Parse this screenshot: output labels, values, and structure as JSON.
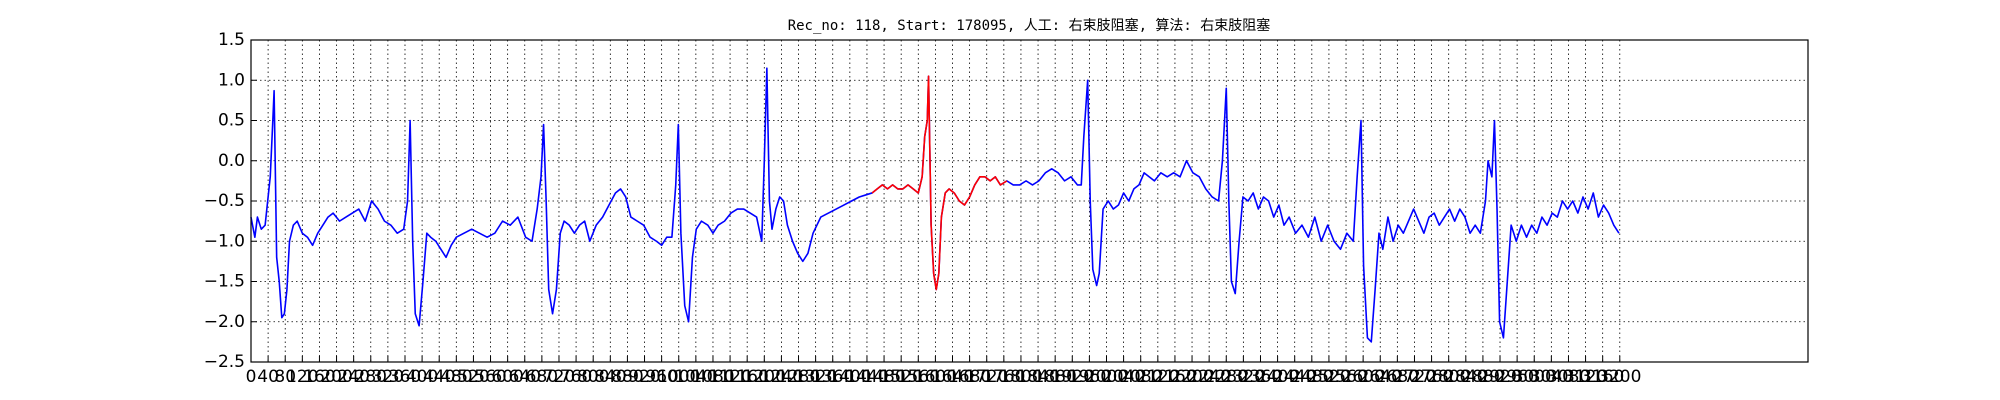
{
  "chart_data": {
    "type": "line",
    "title": "Rec_no: 118, Start: 178095, 人工: 右束肢阻塞, 算法: 右束肢阻塞",
    "xlim": [
      0,
      3640
    ],
    "ylim": [
      -2.5,
      1.5
    ],
    "xticks": [
      0,
      40,
      80,
      120,
      160,
      200,
      240,
      280,
      320,
      360,
      400,
      440,
      480,
      520,
      560,
      600,
      640,
      680,
      720,
      760,
      800,
      840,
      880,
      920,
      960,
      1000,
      1040,
      1080,
      1120,
      1160,
      1200,
      1240,
      1280,
      1320,
      1360,
      1400,
      1440,
      1480,
      1520,
      1560,
      1600,
      1640,
      1680,
      1720,
      1760,
      1800,
      1840,
      1880,
      1920,
      1960,
      2000,
      2040,
      2080,
      2120,
      2160,
      2200,
      2240,
      2280,
      2320,
      2360,
      2400,
      2440,
      2480,
      2520,
      2560,
      2600,
      2640,
      2680,
      2720,
      2760,
      2800,
      2840,
      2880,
      2920,
      2960,
      3000,
      3040,
      3080,
      3120,
      3160,
      3200
    ],
    "yticks": [
      {
        "value": -2.5,
        "label": "−2.5"
      },
      {
        "value": -2.0,
        "label": "−2.0"
      },
      {
        "value": -1.5,
        "label": "−1.5"
      },
      {
        "value": -1.0,
        "label": "−1.0"
      },
      {
        "value": -0.5,
        "label": "−0.5"
      },
      {
        "value": 0.0,
        "label": "0.0"
      },
      0.5,
      {
        "value": 1.0,
        "label": "1.0"
      },
      1.5
    ],
    "grid": true,
    "series": [
      {
        "color": "#0000ff",
        "x": [
          0,
          9,
          15,
          24,
          33,
          39,
          45,
          51,
          54,
          60,
          66,
          72,
          78,
          84,
          90,
          99,
          108,
          120,
          132,
          144,
          156,
          168,
          180,
          192,
          207,
          222,
          237,
          252,
          267,
          282,
          297,
          312,
          327,
          342,
          357,
          366,
          372,
          378,
          384,
          393,
          402,
          411,
          420,
          432,
          444,
          456,
          468,
          480,
          498,
          516,
          534,
          552,
          570,
          588,
          606,
          624,
          642,
          657,
          669,
          678,
          684,
          690,
          696,
          705,
          714,
          723,
          732,
          744,
          756,
          768,
          780,
          792,
          807,
          822,
          837,
          852,
          864,
          876,
          888,
          903,
          918,
          933,
          948,
          960,
          972,
          984,
          993,
          999,
          1005,
          1014,
          1023,
          1032,
          1041,
          1053,
          1068,
          1080,
          1092,
          1107,
          1122,
          1137,
          1152,
          1167,
          1182,
          1194,
          1200,
          1206,
          1212,
          1218,
          1227,
          1236,
          1245,
          1254,
          1266,
          1278,
          1290,
          1302,
          1314,
          1332,
          1350,
          1368,
          1386,
          1404,
          1422,
          1440,
          1452,
          1464,
          1476,
          1488,
          1500,
          1512,
          1524,
          1536,
          1548,
          1560,
          1569,
          1575,
          1581,
          1584,
          1590,
          1596,
          1602,
          1608,
          1614,
          1623,
          1632,
          1644,
          1656,
          1668,
          1680,
          1692,
          1704,
          1716,
          1728,
          1740,
          1752,
          1767,
          1782,
          1797,
          1812,
          1827,
          1842,
          1857,
          1872,
          1887,
          1902,
          1917,
          1932,
          1941,
          1947,
          1956,
          1962,
          1968,
          1977,
          1983,
          1992,
          2004,
          2016,
          2028,
          2040,
          2052,
          2064,
          2076,
          2088,
          2100,
          2112,
          2127,
          2142,
          2157,
          2172,
          2187,
          2202,
          2217,
          2232,
          2247,
          2262,
          2271,
          2280,
          2286,
          2292,
          2301,
          2310,
          2319,
          2331,
          2343,
          2355,
          2367,
          2379,
          2391,
          2403,
          2415,
          2427,
          2442,
          2457,
          2472,
          2487,
          2502,
          2517,
          2532,
          2547,
          2562,
          2577,
          2586,
          2595,
          2601,
          2610,
          2619,
          2628,
          2637,
          2646,
          2658,
          2670,
          2682,
          2694,
          2706,
          2718,
          2730,
          2742,
          2754,
          2766,
          2778,
          2790,
          2802,
          2814,
          2826,
          2838,
          2850,
          2862,
          2874,
          2886,
          2892,
          2901,
          2907,
          2913,
          2919,
          2928,
          2937,
          2946,
          2958,
          2970,
          2982,
          2994,
          3006,
          3018,
          3030,
          3042,
          3054,
          3066,
          3078,
          3090,
          3102,
          3114,
          3126,
          3138,
          3150,
          3162,
          3174,
          3186,
          3198
        ],
        "values": [
          -0.7,
          -0.95,
          -0.7,
          -0.85,
          -0.8,
          -0.5,
          -0.2,
          0.5,
          0.87,
          -1.2,
          -1.5,
          -1.95,
          -1.9,
          -1.6,
          -1.0,
          -0.8,
          -0.75,
          -0.9,
          -0.95,
          -1.05,
          -0.9,
          -0.8,
          -0.7,
          -0.65,
          -0.75,
          -0.7,
          -0.65,
          -0.6,
          -0.75,
          -0.5,
          -0.6,
          -0.75,
          -0.8,
          -0.9,
          -0.85,
          -0.5,
          0.5,
          -1.0,
          -1.9,
          -2.05,
          -1.5,
          -0.9,
          -0.95,
          -1.0,
          -1.1,
          -1.2,
          -1.05,
          -0.95,
          -0.9,
          -0.85,
          -0.9,
          -0.95,
          -0.9,
          -0.75,
          -0.8,
          -0.7,
          -0.95,
          -1.0,
          -0.6,
          -0.2,
          0.45,
          -0.5,
          -1.6,
          -1.9,
          -1.6,
          -0.9,
          -0.75,
          -0.8,
          -0.9,
          -0.8,
          -0.75,
          -1.0,
          -0.8,
          -0.7,
          -0.55,
          -0.4,
          -0.35,
          -0.45,
          -0.7,
          -0.75,
          -0.8,
          -0.95,
          -1.0,
          -1.05,
          -0.95,
          -0.95,
          -0.3,
          0.45,
          -0.9,
          -1.8,
          -2.0,
          -1.2,
          -0.85,
          -0.75,
          -0.8,
          -0.9,
          -0.8,
          -0.75,
          -0.65,
          -0.6,
          -0.6,
          -0.65,
          -0.7,
          -1.0,
          0.0,
          1.15,
          -0.5,
          -0.85,
          -0.6,
          -0.45,
          -0.5,
          -0.8,
          -1.0,
          -1.15,
          -1.25,
          -1.15,
          -0.9,
          -0.7,
          -0.65,
          -0.6,
          -0.55,
          -0.5,
          -0.45,
          -0.42,
          -0.4,
          -0.35,
          -0.3,
          -0.35,
          -0.3,
          -0.35,
          -0.35,
          -0.3,
          -0.35,
          -0.4,
          -0.2,
          0.3,
          0.5,
          1.05,
          -0.8,
          -1.4,
          -1.6,
          -1.4,
          -0.7,
          -0.4,
          -0.35,
          -0.4,
          -0.5,
          -0.55,
          -0.45,
          -0.3,
          -0.2,
          -0.2,
          -0.25,
          -0.2,
          -0.3,
          -0.25,
          -0.3,
          -0.3,
          -0.25,
          -0.3,
          -0.25,
          -0.15,
          -0.1,
          -0.15,
          -0.25,
          -0.2,
          -0.3,
          -0.3,
          0.3,
          1.0,
          -0.5,
          -1.35,
          -1.55,
          -1.4,
          -0.6,
          -0.5,
          -0.6,
          -0.55,
          -0.4,
          -0.5,
          -0.35,
          -0.3,
          -0.15,
          -0.2,
          -0.25,
          -0.15,
          -0.2,
          -0.15,
          -0.2,
          0.0,
          -0.15,
          -0.2,
          -0.35,
          -0.45,
          -0.5,
          0.0,
          0.9,
          -0.5,
          -1.5,
          -1.65,
          -1.0,
          -0.45,
          -0.5,
          -0.4,
          -0.6,
          -0.45,
          -0.5,
          -0.7,
          -0.55,
          -0.8,
          -0.7,
          -0.9,
          -0.8,
          -0.95,
          -0.7,
          -1.0,
          -0.8,
          -1.0,
          -1.1,
          -0.9,
          -1.0,
          -0.2,
          0.5,
          -1.3,
          -2.2,
          -2.25,
          -1.6,
          -0.9,
          -1.1,
          -0.7,
          -1.0,
          -0.8,
          -0.9,
          -0.75,
          -0.6,
          -0.75,
          -0.9,
          -0.7,
          -0.65,
          -0.8,
          -0.7,
          -0.6,
          -0.75,
          -0.6,
          -0.7,
          -0.9,
          -0.8,
          -0.9,
          -0.5,
          0.0,
          -0.2,
          0.5,
          -0.6,
          -2.0,
          -2.2,
          -1.5,
          -0.8,
          -1.0,
          -0.8,
          -0.95,
          -0.8,
          -0.9,
          -0.7,
          -0.8,
          -0.65,
          -0.7,
          -0.5,
          -0.6,
          -0.5,
          -0.65,
          -0.45,
          -0.6,
          -0.4,
          -0.7,
          -0.55,
          -0.65,
          -0.8,
          -0.9
        ]
      },
      {
        "color": "#ff0000",
        "x": [
          1452,
          1464,
          1476,
          1488,
          1500,
          1512,
          1524,
          1536,
          1548,
          1560,
          1569,
          1575,
          1581,
          1584,
          1590,
          1596,
          1602,
          1608,
          1614,
          1623,
          1632,
          1644,
          1656,
          1668,
          1680,
          1692,
          1704,
          1716,
          1728,
          1740,
          1752,
          1767
        ],
        "values": [
          -0.4,
          -0.35,
          -0.3,
          -0.35,
          -0.3,
          -0.35,
          -0.35,
          -0.3,
          -0.35,
          -0.4,
          -0.2,
          0.3,
          0.5,
          1.05,
          -0.8,
          -1.4,
          -1.6,
          -1.4,
          -0.7,
          -0.4,
          -0.35,
          -0.4,
          -0.5,
          -0.55,
          -0.45,
          -0.3,
          -0.2,
          -0.2,
          -0.25,
          -0.2,
          -0.3,
          -0.25
        ]
      }
    ]
  }
}
